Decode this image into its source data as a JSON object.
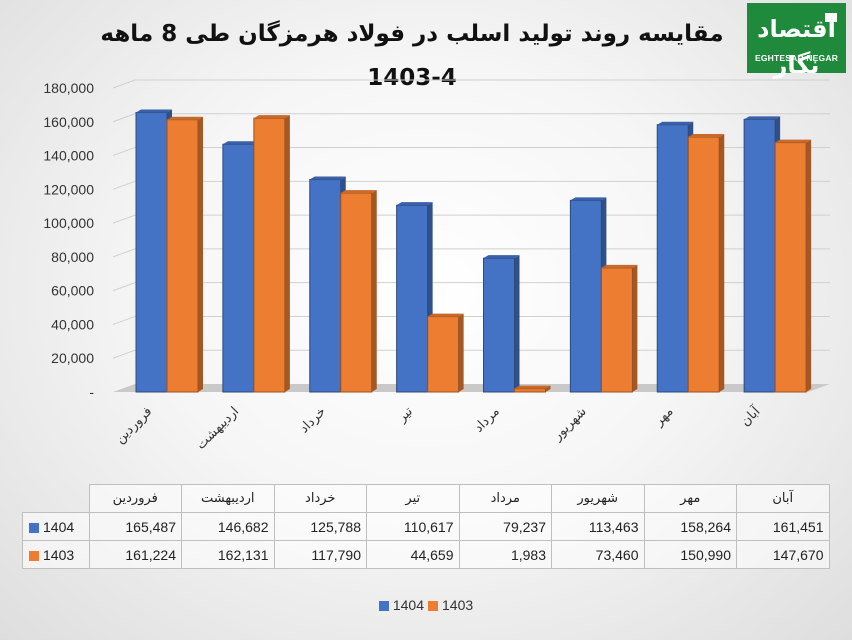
{
  "header": {
    "title": "مقایسه روند تولید اسلب در فولاد هرمزگان طی 8 ماهه 4-1403",
    "logo_word": "اقتصاد نگار",
    "logo_caption": "EGHTESAD NEGAR"
  },
  "chart_data": {
    "type": "bar",
    "title": "مقایسه روند تولید اسلب در فولاد هرمزگان طی 8 ماهه 4-1403",
    "categories": [
      "فروردین",
      "اردیبهشت",
      "خرداد",
      "تیر",
      "مرداد",
      "شهریور",
      "مهر",
      "آبان"
    ],
    "series": [
      {
        "name": "1404",
        "color": "#4472c4",
        "values": [
          165487,
          146682,
          125788,
          110617,
          79237,
          113463,
          158264,
          161451
        ],
        "labels": [
          "165,487",
          "146,682",
          "125,788",
          "110,617",
          "79,237",
          "113,463",
          "158,264",
          "161,451"
        ]
      },
      {
        "name": "1403",
        "color": "#ed7d31",
        "values": [
          161224,
          162131,
          117790,
          44659,
          1983,
          73460,
          150990,
          147670
        ],
        "labels": [
          "161,224",
          "162,131",
          "117,790",
          "44,659",
          "1,983",
          "73,460",
          "150,990",
          "147,670"
        ]
      }
    ],
    "ylim": [
      0,
      180000
    ],
    "yticks": [
      "-",
      "20,000",
      "40,000",
      "60,000",
      "80,000",
      "100,000",
      "120,000",
      "140,000",
      "160,000",
      "180,000"
    ],
    "grid": true,
    "legend": "bottom",
    "data_table": true
  }
}
